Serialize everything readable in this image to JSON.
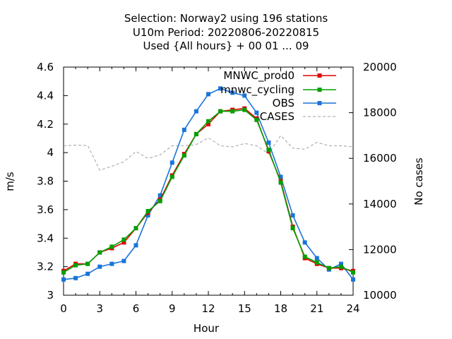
{
  "title": {
    "line1": "Selection: Norway2 using   196 stations",
    "line2": "U10m   Period: 20220806-20220815",
    "line3": "Used {All hours} + 00 01 ... 09"
  },
  "chart_data": {
    "type": "line",
    "xlabel": "Hour",
    "ylabel": "m/s",
    "y2label": "No cases",
    "xlim": [
      0,
      24
    ],
    "ylim": [
      3.0,
      4.6
    ],
    "y2lim": [
      10000,
      20000
    ],
    "xticks": [
      "0",
      "3",
      "6",
      "9",
      "12",
      "15",
      "18",
      "21",
      "24"
    ],
    "yticks": [
      "3",
      "3.2",
      "3.4",
      "3.6",
      "3.8",
      "4",
      "4.2",
      "4.4",
      "4.6"
    ],
    "y2ticks": [
      "10000",
      "12000",
      "14000",
      "16000",
      "18000",
      "20000"
    ],
    "legend_position": "top-right",
    "grid": false,
    "x": [
      0,
      1,
      2,
      3,
      4,
      5,
      6,
      7,
      8,
      9,
      10,
      11,
      12,
      13,
      14,
      15,
      16,
      17,
      18,
      19,
      20,
      21,
      22,
      23,
      24
    ],
    "series": [
      {
        "name": "MNWC_prod0",
        "color": "#e00000",
        "axis": "y",
        "style": "solid",
        "values": [
          3.17,
          3.22,
          3.22,
          3.3,
          3.33,
          3.37,
          3.47,
          3.58,
          3.67,
          3.84,
          3.99,
          4.13,
          4.2,
          4.29,
          4.3,
          4.31,
          4.24,
          4.01,
          3.8,
          3.48,
          3.26,
          3.22,
          3.19,
          3.19,
          3.17
        ]
      },
      {
        "name": "mnwc_cycling",
        "color": "#00a000",
        "axis": "y",
        "style": "solid",
        "values": [
          3.16,
          3.21,
          3.22,
          3.3,
          3.34,
          3.39,
          3.47,
          3.59,
          3.66,
          3.83,
          3.98,
          4.13,
          4.22,
          4.29,
          4.29,
          4.3,
          4.23,
          4.02,
          3.79,
          3.47,
          3.27,
          3.23,
          3.19,
          3.2,
          3.16
        ]
      },
      {
        "name": "OBS",
        "color": "#1a74d8",
        "axis": "y",
        "style": "solid",
        "values": [
          3.11,
          3.12,
          3.15,
          3.2,
          3.22,
          3.24,
          3.35,
          3.56,
          3.7,
          3.93,
          4.16,
          4.29,
          4.41,
          4.45,
          4.42,
          4.4,
          4.28,
          4.07,
          3.83,
          3.56,
          3.37,
          3.26,
          3.18,
          3.22,
          3.11
        ]
      },
      {
        "name": "CASES",
        "color": "#a0a0a0",
        "axis": "y2",
        "style": "dashed",
        "values": [
          16550,
          16580,
          16560,
          15480,
          15650,
          15850,
          16300,
          16000,
          16150,
          16550,
          16550,
          16600,
          16900,
          16550,
          16500,
          16650,
          16550,
          16200,
          17000,
          16450,
          16400,
          16700,
          16550,
          16550,
          16500
        ]
      }
    ]
  }
}
